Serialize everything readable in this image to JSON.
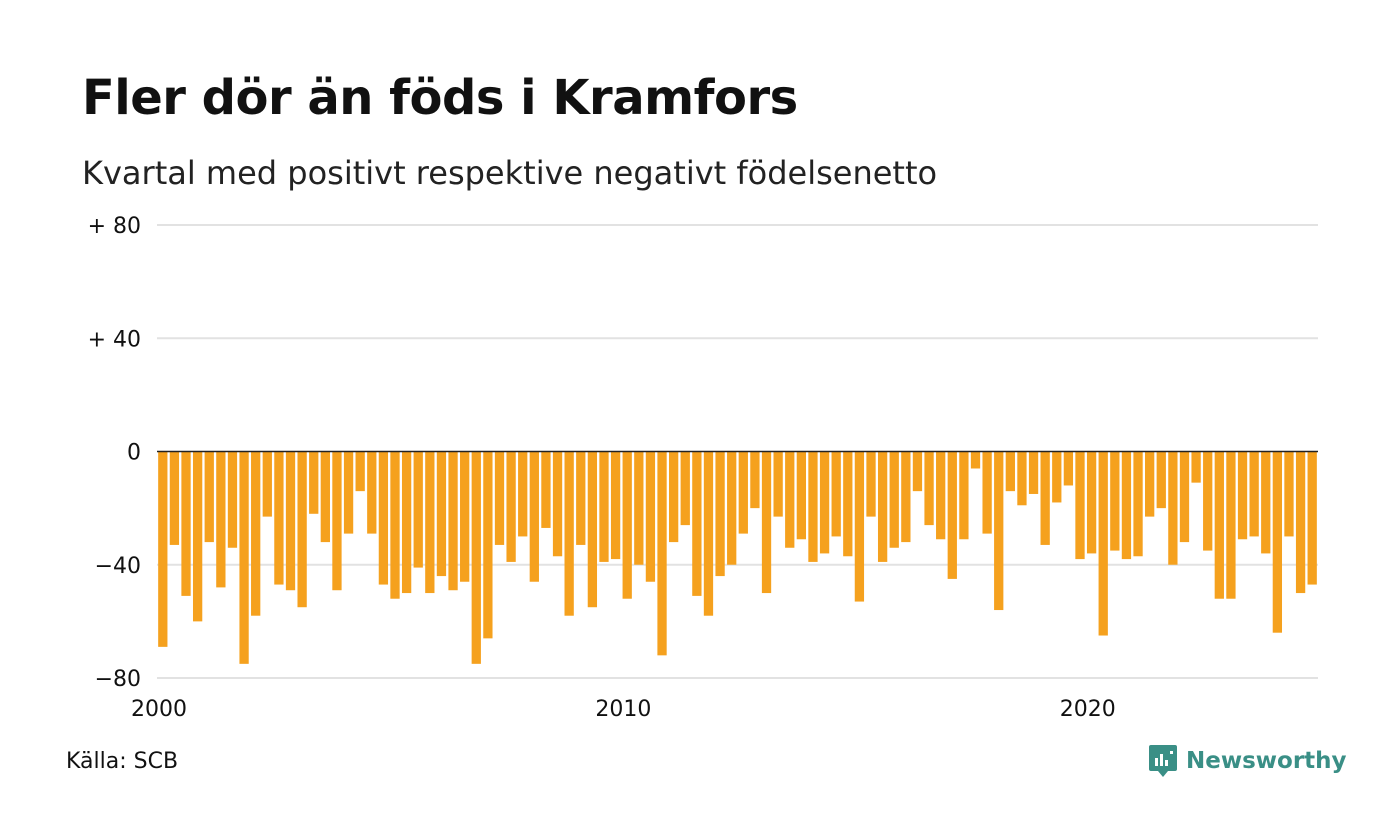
{
  "title": "Fler dör än föds i Kramfors",
  "subtitle": "Kvartal med positivt respektive negativt födelsenetto",
  "source": "Källa: SCB",
  "brand": {
    "name": "Newsworthy",
    "icon": "newsworthy-logo-icon",
    "color": "#3a8f86"
  },
  "colors": {
    "bar": "#f5a11e",
    "grid": "#e2e2e2",
    "zero_line": "#222222"
  },
  "chart_data": {
    "type": "bar",
    "xlabel": "",
    "ylabel": "",
    "ylim": [
      -80,
      80
    ],
    "y_ticks": [
      {
        "value": 80,
        "label": "+ 80"
      },
      {
        "value": 40,
        "label": "+ 40"
      },
      {
        "value": 0,
        "label": "0"
      },
      {
        "value": -40,
        "label": "−40"
      },
      {
        "value": -80,
        "label": "−80"
      }
    ],
    "x_ticks": [
      {
        "year": 2000,
        "label": "2000"
      },
      {
        "year": 2010,
        "label": "2010"
      },
      {
        "year": 2020,
        "label": "2020"
      }
    ],
    "start": "2000 Q1",
    "grid": true,
    "legend": "none",
    "values": [
      -69,
      -33,
      -51,
      -60,
      -32,
      -48,
      -34,
      -75,
      -58,
      -23,
      -47,
      -49,
      -55,
      -22,
      -32,
      -49,
      -29,
      -14,
      -29,
      -47,
      -52,
      -50,
      -41,
      -50,
      -44,
      -49,
      -46,
      -75,
      -66,
      -33,
      -39,
      -30,
      -46,
      -27,
      -37,
      -58,
      -33,
      -55,
      -39,
      -38,
      -52,
      -40,
      -46,
      -72,
      -32,
      -26,
      -51,
      -58,
      -44,
      -40,
      -29,
      -20,
      -50,
      -23,
      -34,
      -31,
      -39,
      -36,
      -30,
      -37,
      -53,
      -23,
      -39,
      -34,
      -32,
      -14,
      -26,
      -31,
      -45,
      -31,
      -6,
      -29,
      -56,
      -14,
      -19,
      -15,
      -33,
      -18,
      -12,
      -38,
      -36,
      -65,
      -35,
      -38,
      -37,
      -23,
      -20,
      -40,
      -32,
      -11,
      -35,
      -52,
      -52,
      -31,
      -30,
      -36,
      -64,
      -30,
      -50,
      -47
    ]
  }
}
